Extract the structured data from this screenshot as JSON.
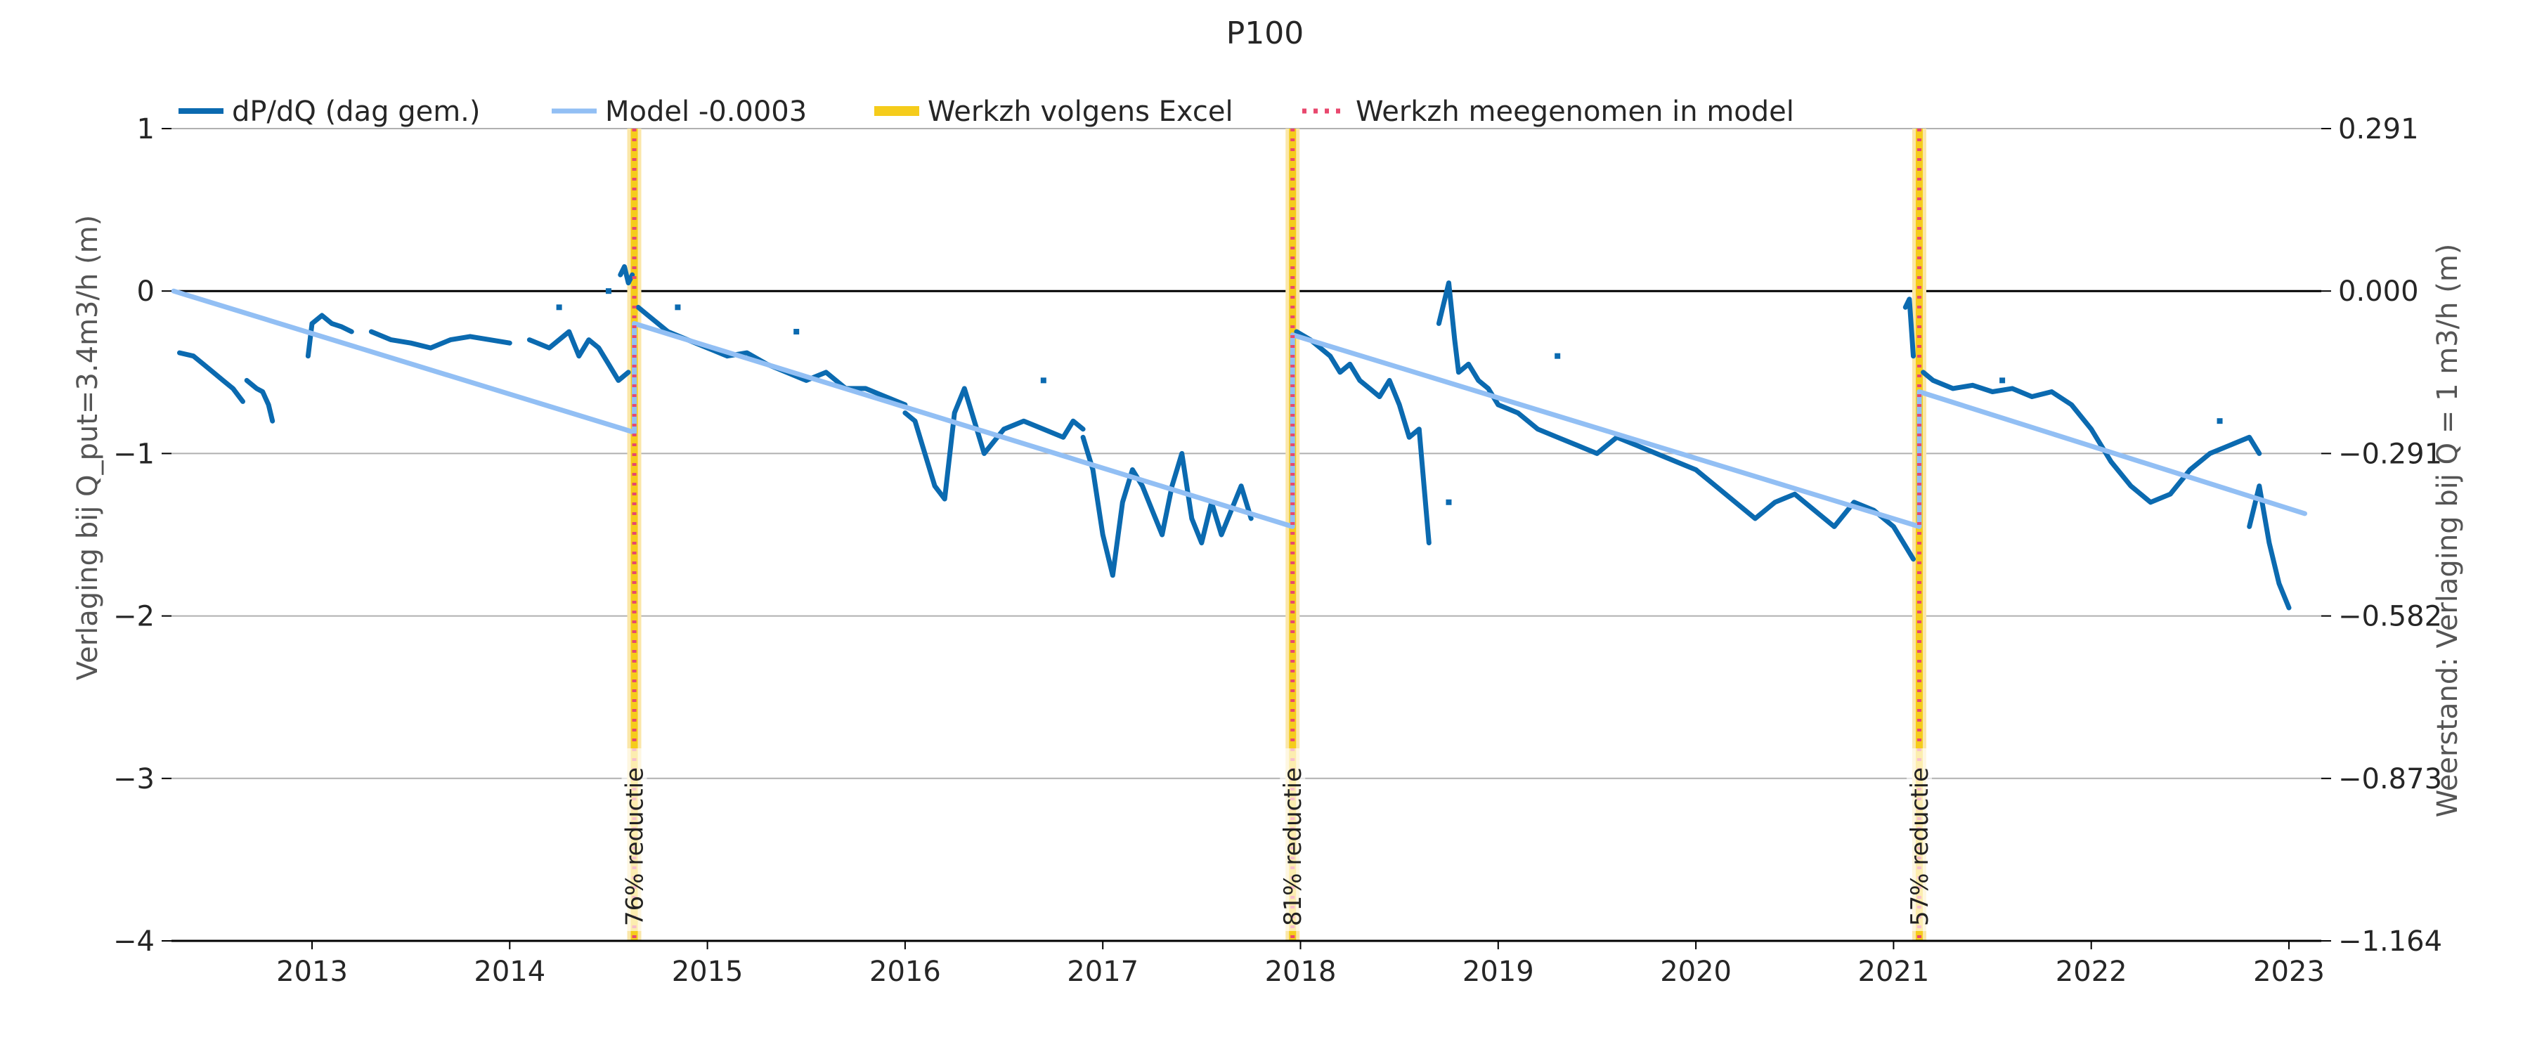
{
  "chart_data": {
    "type": "line",
    "title": "P100",
    "ylabel": "Verlaging bij Q_put=3.4m3/h (m)",
    "ylabel_right": "Weerstand: Verlaging bij Q = 1 m3/h (m)",
    "xlim": [
      2012.3,
      2023.0
    ],
    "ylim": [
      -4,
      1
    ],
    "x_ticks": [
      2013,
      2014,
      2015,
      2016,
      2017,
      2018,
      2019,
      2020,
      2021,
      2022,
      2023
    ],
    "x_tick_labels": [
      "2013",
      "2014",
      "2015",
      "2016",
      "2017",
      "2018",
      "2019",
      "2020",
      "2021",
      "2022",
      "2023"
    ],
    "y_ticks": [
      1,
      0,
      -1,
      -2,
      -3,
      -4
    ],
    "y_tick_labels": [
      "1",
      "0",
      "−1",
      "−2",
      "−3",
      "−4"
    ],
    "y_right_ticks": [
      1,
      0,
      -1,
      -2,
      -3,
      -4
    ],
    "y_right_tick_labels": [
      "0.291",
      "0.000",
      "−0.291",
      "−0.582",
      "−0.873",
      "−1.164"
    ],
    "grid": "horizontal",
    "legend_position": "top",
    "legend": [
      {
        "label": "dP/dQ (dag gem.)",
        "color": "#0b6ab0",
        "style": "solid-thick"
      },
      {
        "label": "Model -0.0003",
        "color": "#92bff4",
        "style": "solid"
      },
      {
        "label": "Werkzh volgens Excel",
        "color": "#f5cc1b",
        "style": "thick"
      },
      {
        "label": "Werkzh meegenomen in model",
        "color": "#e8486e",
        "style": "dotted"
      }
    ],
    "colors": {
      "data": "#0b6ab0",
      "model": "#92bff4",
      "excel": "#f5cc1b",
      "excel_band": "#fbe7a8",
      "dotted": "#e8486e",
      "zero_line": "#000000",
      "grid": "#b0b0b0"
    },
    "maintenance_events": [
      {
        "x": 2014.63,
        "label": "76% reductie"
      },
      {
        "x": 2017.96,
        "label": "81% reductie"
      },
      {
        "x": 2021.13,
        "label": "57% reductie"
      }
    ],
    "model_segments": [
      {
        "x": [
          2012.3,
          2014.63
        ],
        "y": [
          0.0,
          -0.87
        ]
      },
      {
        "x": [
          2014.63,
          2017.96
        ],
        "y": [
          -0.2,
          -1.45
        ]
      },
      {
        "x": [
          2017.96,
          2021.13
        ],
        "y": [
          -0.27,
          -1.45
        ]
      },
      {
        "x": [
          2021.13,
          2023.08
        ],
        "y": [
          -0.62,
          -1.37
        ]
      }
    ],
    "series": [
      {
        "name": "dP/dQ (dag gem.)",
        "segments": [
          {
            "x": [
              2012.33,
              2012.4,
              2012.45,
              2012.5,
              2012.55,
              2012.6,
              2012.65
            ],
            "y": [
              -0.38,
              -0.4,
              -0.45,
              -0.5,
              -0.55,
              -0.6,
              -0.68
            ]
          },
          {
            "x": [
              2012.67,
              2012.72,
              2012.75,
              2012.78,
              2012.8
            ],
            "y": [
              -0.55,
              -0.6,
              -0.62,
              -0.7,
              -0.8
            ]
          },
          {
            "x": [
              2012.98,
              2013.0,
              2013.05,
              2013.1,
              2013.15,
              2013.2
            ],
            "y": [
              -0.4,
              -0.2,
              -0.15,
              -0.2,
              -0.22,
              -0.25
            ]
          },
          {
            "x": [
              2013.3,
              2013.4,
              2013.5,
              2013.6,
              2013.7,
              2013.8,
              2013.9,
              2014.0
            ],
            "y": [
              -0.25,
              -0.3,
              -0.32,
              -0.35,
              -0.3,
              -0.28,
              -0.3,
              -0.32
            ]
          },
          {
            "x": [
              2014.1,
              2014.2,
              2014.3,
              2014.35,
              2014.4,
              2014.45,
              2014.5,
              2014.55,
              2014.6
            ],
            "y": [
              -0.3,
              -0.35,
              -0.25,
              -0.4,
              -0.3,
              -0.35,
              -0.45,
              -0.55,
              -0.5
            ]
          },
          {
            "x": [
              2014.56,
              2014.58,
              2014.6,
              2014.62
            ],
            "y": [
              0.1,
              0.15,
              0.05,
              0.1
            ]
          },
          {
            "x": [
              2014.65,
              2014.7,
              2014.75,
              2014.8,
              2014.9,
              2015.0,
              2015.1,
              2015.2,
              2015.3,
              2015.4,
              2015.5,
              2015.6,
              2015.7,
              2015.8,
              2015.9,
              2016.0
            ],
            "y": [
              -0.1,
              -0.15,
              -0.2,
              -0.25,
              -0.3,
              -0.35,
              -0.4,
              -0.38,
              -0.45,
              -0.5,
              -0.55,
              -0.5,
              -0.6,
              -0.6,
              -0.65,
              -0.7
            ]
          },
          {
            "x": [
              2016.0,
              2016.05,
              2016.1,
              2016.15,
              2016.2,
              2016.25,
              2016.3,
              2016.35,
              2016.4,
              2016.5,
              2016.6,
              2016.7,
              2016.8,
              2016.85,
              2016.9
            ],
            "y": [
              -0.75,
              -0.8,
              -1.0,
              -1.2,
              -1.28,
              -0.75,
              -0.6,
              -0.8,
              -1.0,
              -0.85,
              -0.8,
              -0.85,
              -0.9,
              -0.8,
              -0.85
            ]
          },
          {
            "x": [
              2016.9,
              2016.95,
              2017.0,
              2017.05,
              2017.1,
              2017.15,
              2017.2,
              2017.25,
              2017.3,
              2017.35,
              2017.4,
              2017.45,
              2017.5,
              2017.55,
              2017.6,
              2017.65,
              2017.7,
              2017.75
            ],
            "y": [
              -0.9,
              -1.1,
              -1.5,
              -1.75,
              -1.3,
              -1.1,
              -1.2,
              -1.35,
              -1.5,
              -1.2,
              -1.0,
              -1.4,
              -1.55,
              -1.3,
              -1.5,
              -1.35,
              -1.2,
              -1.4
            ]
          },
          {
            "x": [
              2017.98,
              2018.05,
              2018.1,
              2018.15,
              2018.2,
              2018.25,
              2018.3,
              2018.35,
              2018.4,
              2018.45,
              2018.5,
              2018.55,
              2018.6,
              2018.65
            ],
            "y": [
              -0.25,
              -0.3,
              -0.35,
              -0.4,
              -0.5,
              -0.45,
              -0.55,
              -0.6,
              -0.65,
              -0.55,
              -0.7,
              -0.9,
              -0.85,
              -1.55
            ]
          },
          {
            "x": [
              2018.7,
              2018.72,
              2018.75,
              2018.78,
              2018.8,
              2018.85,
              2018.9,
              2018.95,
              2019.0,
              2019.1,
              2019.2,
              2019.3,
              2019.4,
              2019.5,
              2019.6
            ],
            "y": [
              -0.2,
              -0.1,
              0.05,
              -0.3,
              -0.5,
              -0.45,
              -0.55,
              -0.6,
              -0.7,
              -0.75,
              -0.85,
              -0.9,
              -0.95,
              -1.0,
              -0.9
            ]
          },
          {
            "x": [
              2019.6,
              2019.7,
              2019.8,
              2019.9,
              2020.0,
              2020.1,
              2020.2,
              2020.3,
              2020.4,
              2020.5,
              2020.6,
              2020.7,
              2020.8,
              2020.9,
              2021.0,
              2021.05,
              2021.1
            ],
            "y": [
              -0.9,
              -0.95,
              -1.0,
              -1.05,
              -1.1,
              -1.2,
              -1.3,
              -1.4,
              -1.3,
              -1.25,
              -1.35,
              -1.45,
              -1.3,
              -1.35,
              -1.45,
              -1.55,
              -1.65
            ]
          },
          {
            "x": [
              2021.06,
              2021.08,
              2021.1
            ],
            "y": [
              -0.1,
              -0.05,
              -0.4
            ]
          },
          {
            "x": [
              2021.15,
              2021.2,
              2021.3,
              2021.4,
              2021.5,
              2021.6,
              2021.7,
              2021.8,
              2021.9,
              2022.0,
              2022.1,
              2022.2,
              2022.3,
              2022.4,
              2022.5,
              2022.6,
              2022.7,
              2022.8,
              2022.85
            ],
            "y": [
              -0.5,
              -0.55,
              -0.6,
              -0.58,
              -0.62,
              -0.6,
              -0.65,
              -0.62,
              -0.7,
              -0.85,
              -1.05,
              -1.2,
              -1.3,
              -1.25,
              -1.1,
              -1.0,
              -0.95,
              -0.9,
              -1.0
            ]
          },
          {
            "x": [
              2022.8,
              2022.85,
              2022.9,
              2022.95,
              2023.0
            ],
            "y": [
              -1.45,
              -1.2,
              -1.55,
              -1.8,
              -1.95
            ]
          }
        ],
        "points": [
          {
            "x": [
              2014.25,
              2014.5,
              2014.85,
              2015.45,
              2016.7,
              2018.75,
              2019.3,
              2021.55,
              2022.65
            ],
            "y": [
              -0.1,
              0.0,
              -0.1,
              -0.25,
              -0.55,
              -1.3,
              -0.4,
              -0.55,
              -0.8
            ]
          }
        ]
      }
    ]
  }
}
